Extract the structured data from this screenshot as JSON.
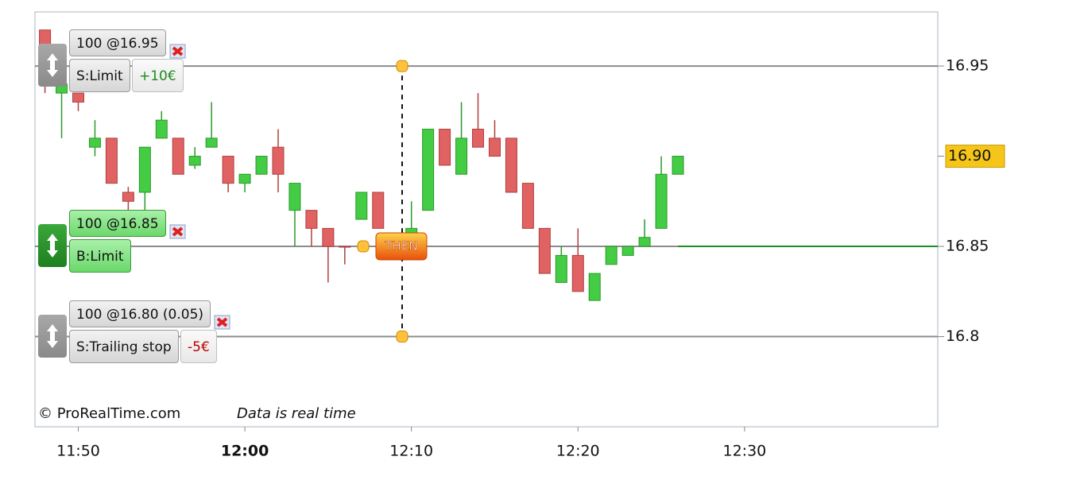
{
  "chart_data": {
    "type": "candlestick",
    "x": [
      708,
      709,
      710,
      711,
      712,
      713,
      714,
      715,
      716,
      717,
      718,
      719,
      720,
      721,
      722,
      723,
      724,
      725,
      726,
      727,
      728,
      730,
      731,
      732,
      733,
      734,
      735,
      736,
      737,
      738,
      739,
      740,
      741,
      742,
      743,
      744,
      745,
      746
    ],
    "open": [
      16.97,
      16.935,
      16.935,
      16.905,
      16.91,
      16.88,
      16.88,
      16.91,
      16.91,
      16.895,
      16.905,
      16.9,
      16.885,
      16.89,
      16.905,
      16.87,
      16.87,
      16.86,
      16.85,
      16.865,
      16.88,
      16.855,
      16.87,
      16.915,
      16.89,
      16.915,
      16.91,
      16.91,
      16.885,
      16.86,
      16.83,
      16.845,
      16.82,
      16.84,
      16.845,
      16.85,
      16.86,
      16.89
    ],
    "high": [
      16.97,
      16.94,
      16.935,
      16.92,
      16.91,
      16.883,
      16.905,
      16.925,
      16.91,
      16.905,
      16.93,
      16.9,
      16.89,
      16.9,
      16.915,
      16.885,
      16.87,
      16.86,
      16.85,
      16.88,
      16.88,
      16.875,
      16.915,
      16.915,
      16.93,
      16.935,
      16.92,
      16.91,
      16.885,
      16.86,
      16.85,
      16.86,
      16.835,
      16.85,
      16.85,
      16.865,
      16.9,
      16.9
    ],
    "low": [
      16.935,
      16.91,
      16.925,
      16.9,
      16.885,
      16.87,
      16.87,
      16.91,
      16.89,
      16.893,
      16.905,
      16.88,
      16.88,
      16.89,
      16.88,
      16.85,
      16.85,
      16.83,
      16.84,
      16.865,
      16.86,
      16.85,
      16.87,
      16.895,
      16.89,
      16.905,
      16.9,
      16.88,
      16.86,
      16.835,
      16.83,
      16.825,
      16.82,
      16.84,
      16.845,
      16.85,
      16.86,
      16.89
    ],
    "close": [
      16.96,
      16.94,
      16.93,
      16.91,
      16.885,
      16.875,
      16.905,
      16.92,
      16.89,
      16.9,
      16.91,
      16.885,
      16.89,
      16.9,
      16.89,
      16.885,
      16.86,
      16.85,
      16.85,
      16.88,
      16.86,
      16.86,
      16.915,
      16.895,
      16.91,
      16.905,
      16.9,
      16.88,
      16.86,
      16.835,
      16.845,
      16.825,
      16.835,
      16.85,
      16.85,
      16.855,
      16.89,
      16.9
    ],
    "up_color": "#44cc44",
    "down_color": "#e06262",
    "xlim": [
      707.4,
      761.6
    ],
    "xticks": [
      {
        "value": 710,
        "label": "11:50"
      },
      {
        "value": 720,
        "label": "12:00",
        "bold": true
      },
      {
        "value": 730,
        "label": "12:10"
      },
      {
        "value": 740,
        "label": "12:20"
      },
      {
        "value": 750,
        "label": "12:30"
      }
    ],
    "ylim": [
      16.75,
      16.98
    ],
    "yticks": [
      16.95,
      16.85,
      16.8
    ],
    "last_price": {
      "value": 16.9,
      "label": "16.90"
    },
    "orders": [
      {
        "price": 16.95,
        "label": "100 @16.95",
        "kind": "S:Limit",
        "pnl": "+10€",
        "pnl_color": "#1f8a1f",
        "side": "sell"
      },
      {
        "price": 16.85,
        "label": "100 @16.85",
        "kind": "B:Limit",
        "side": "buy"
      },
      {
        "price": 16.8,
        "label": "100 @16.80 (0.05)",
        "kind": "S:Trailing stop",
        "pnl": "-5€",
        "pnl_color": "#c00000",
        "side": "sell"
      }
    ],
    "link_label": "THEN",
    "copyright": "© ProRealTime.com",
    "notice": "Data is real time"
  }
}
